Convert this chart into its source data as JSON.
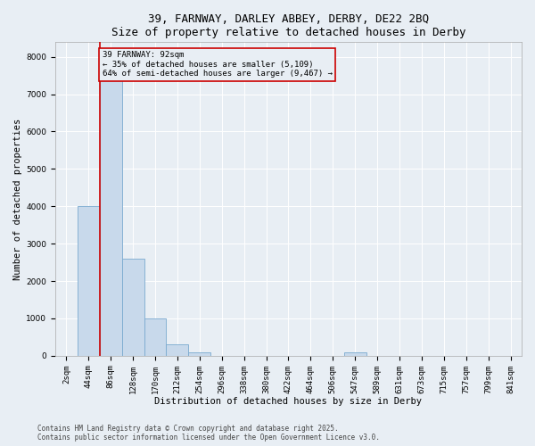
{
  "title_line1": "39, FARNWAY, DARLEY ABBEY, DERBY, DE22 2BQ",
  "title_line2": "Size of property relative to detached houses in Derby",
  "xlabel": "Distribution of detached houses by size in Derby",
  "ylabel": "Number of detached properties",
  "bar_color": "#c8d9eb",
  "bar_edge_color": "#7aaacf",
  "categories": [
    "2sqm",
    "44sqm",
    "86sqm",
    "128sqm",
    "170sqm",
    "212sqm",
    "254sqm",
    "296sqm",
    "338sqm",
    "380sqm",
    "422sqm",
    "464sqm",
    "506sqm",
    "547sqm",
    "589sqm",
    "631sqm",
    "673sqm",
    "715sqm",
    "757sqm",
    "799sqm",
    "841sqm"
  ],
  "values": [
    0,
    4000,
    7400,
    2600,
    1000,
    300,
    100,
    0,
    0,
    0,
    0,
    0,
    0,
    100,
    0,
    0,
    0,
    0,
    0,
    0,
    0
  ],
  "ylim": [
    0,
    8400
  ],
  "yticks": [
    0,
    1000,
    2000,
    3000,
    4000,
    5000,
    6000,
    7000,
    8000
  ],
  "property_bar_index": 2,
  "property_line_color": "#cc0000",
  "annotation_text": "39 FARNWAY: 92sqm\n← 35% of detached houses are smaller (5,109)\n64% of semi-detached houses are larger (9,467) →",
  "annotation_box_edgecolor": "#cc0000",
  "footer_line1": "Contains HM Land Registry data © Crown copyright and database right 2025.",
  "footer_line2": "Contains public sector information licensed under the Open Government Licence v3.0.",
  "bg_color": "#e8eef4",
  "grid_color": "#ffffff",
  "title_fontsize": 9,
  "xlabel_fontsize": 7.5,
  "ylabel_fontsize": 7.5,
  "tick_fontsize": 6.5,
  "annot_fontsize": 6.5,
  "footer_fontsize": 5.5
}
